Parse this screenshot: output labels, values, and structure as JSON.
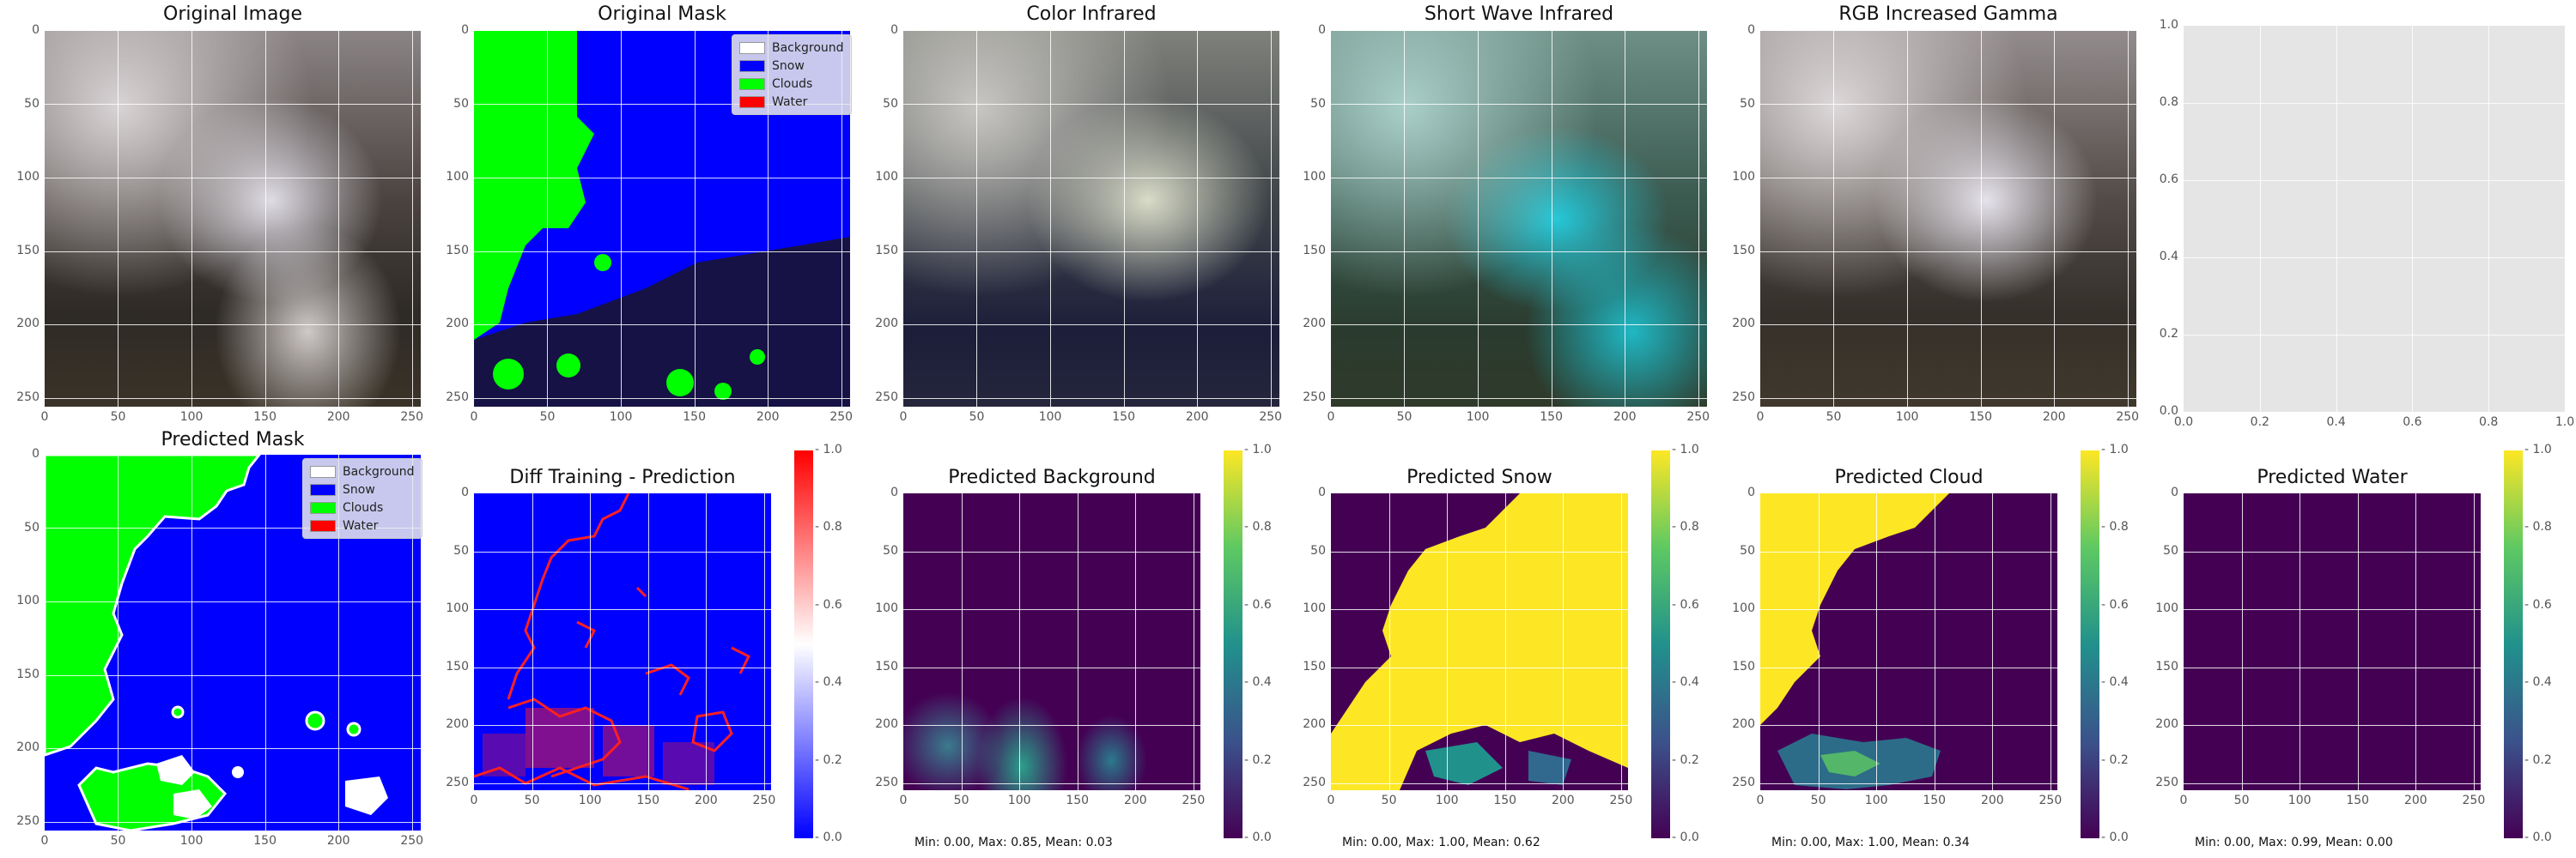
{
  "titles": {
    "original_image": "Original Image",
    "original_mask": "Original Mask",
    "color_infrared": "Color Infrared",
    "short_wave_infrared": "Short Wave Infrared",
    "rgb_increased_gamma": "RGB Increased Gamma",
    "predicted_mask": "Predicted Mask",
    "diff": "Diff Training - Prediction",
    "pred_background": "Predicted Background",
    "pred_snow": "Predicted Snow",
    "pred_cloud": "Predicted Cloud",
    "pred_water": "Predicted Water"
  },
  "ticks": {
    "img_axis": [
      "0",
      "50",
      "100",
      "150",
      "200",
      "250"
    ],
    "empty_axis": [
      "0.0",
      "0.2",
      "0.4",
      "0.6",
      "0.8",
      "1.0"
    ],
    "cbar": [
      "0.0",
      "0.2",
      "0.4",
      "0.6",
      "0.8",
      "1.0"
    ]
  },
  "legend": {
    "items": [
      {
        "label": "Background",
        "color": "#ffffff"
      },
      {
        "label": "Snow",
        "color": "#0000ff"
      },
      {
        "label": "Clouds",
        "color": "#00ff00"
      },
      {
        "label": "Water",
        "color": "#ff0000"
      }
    ]
  },
  "stats": {
    "background": "Min: 0.00, Max: 0.85, Mean: 0.03",
    "snow": "Min: 0.00, Max: 1.00, Mean: 0.62",
    "cloud": "Min: 0.00, Max: 1.00, Mean: 0.34",
    "water": "Min: 0.00, Max: 0.99, Mean: 0.00"
  },
  "colors": {
    "snow": "#0000ff",
    "clouds": "#00ff00",
    "diff_red": "#ff0000",
    "viridis_low": "#440154",
    "viridis_high": "#fde725",
    "empty_axis_bg": "#e5e5e5"
  }
}
